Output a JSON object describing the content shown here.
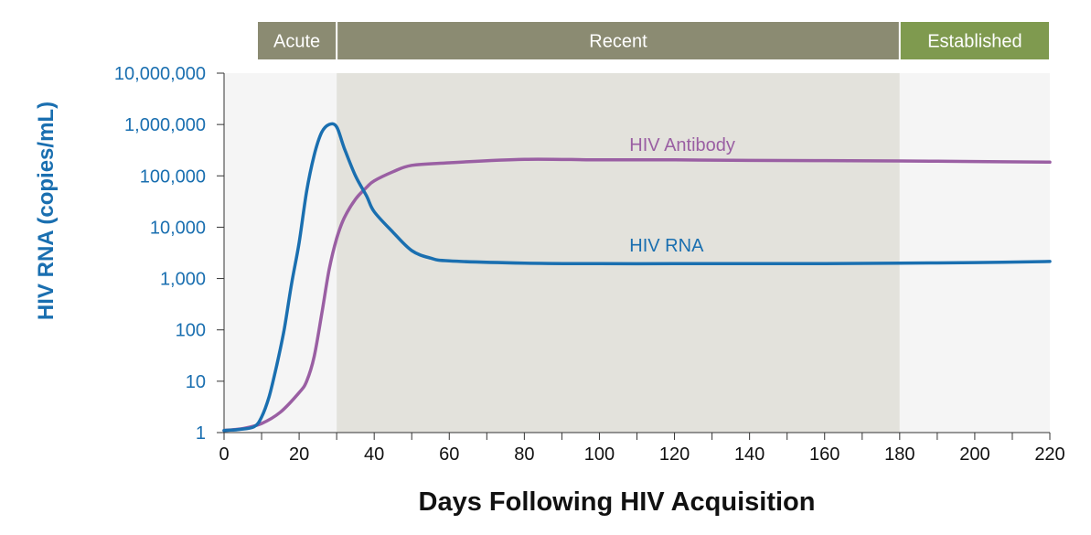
{
  "chart_data": {
    "type": "line",
    "xlabel": "Days Following HIV Acquisition",
    "ylabel": "HIV RNA (copies/mL)",
    "xlim": [
      0,
      220
    ],
    "ylim": [
      1,
      10000000
    ],
    "y_scale": "log",
    "grid": false,
    "x_ticks": [
      "0",
      "20",
      "40",
      "60",
      "80",
      "100",
      "120",
      "140",
      "160",
      "180",
      "200",
      "220"
    ],
    "y_ticks": [
      "1",
      "10",
      "100",
      "1,000",
      "10,000",
      "100,000",
      "1,000,000",
      "10,000,000"
    ],
    "phases": [
      {
        "name": "Acute",
        "start": 0,
        "end": 30,
        "band_color": "#8b8b72",
        "shade": "#f5f5f5"
      },
      {
        "name": "Recent",
        "start": 30,
        "end": 180,
        "band_color": "#8b8b72",
        "shade": "#e3e2dc"
      },
      {
        "name": "Established",
        "start": 180,
        "end": 220,
        "band_color": "#7f9a4f",
        "shade": "#f5f5f5"
      }
    ],
    "series": [
      {
        "name": "HIV RNA",
        "color": "#1a6fb0",
        "x": [
          0,
          4,
          8,
          10,
          12,
          14,
          16,
          18,
          20,
          22,
          24,
          26,
          28,
          30,
          32,
          35,
          38,
          40,
          45,
          50,
          55,
          60,
          80,
          100,
          120,
          140,
          160,
          180,
          200,
          220
        ],
        "y": [
          1.1,
          1.15,
          1.3,
          2,
          5,
          20,
          100,
          800,
          5000,
          50000,
          250000,
          700000,
          1000000,
          900000,
          350000,
          100000,
          40000,
          20000,
          8000,
          3500,
          2500,
          2200,
          2000,
          1950,
          1950,
          1950,
          1950,
          2000,
          2050,
          2150
        ]
      },
      {
        "name": "HIV Antibody",
        "color": "#9a5fa3",
        "x": [
          0,
          5,
          10,
          15,
          20,
          22,
          24,
          26,
          28,
          30,
          32,
          35,
          38,
          40,
          45,
          50,
          60,
          80,
          100,
          120,
          140,
          160,
          180,
          200,
          220
        ],
        "y": [
          1.1,
          1.2,
          1.5,
          2.5,
          6,
          10,
          30,
          200,
          1500,
          6000,
          15000,
          35000,
          60000,
          80000,
          120000,
          160000,
          180000,
          210000,
          205000,
          205000,
          200000,
          198000,
          195000,
          190000,
          185000
        ]
      }
    ],
    "annotations": [
      {
        "text": "HIV Antibody",
        "x": 108,
        "y": 220000,
        "color": "#9a5fa3"
      },
      {
        "text": "HIV RNA",
        "x": 108,
        "y": 2400,
        "color": "#1a6fb0"
      }
    ]
  }
}
